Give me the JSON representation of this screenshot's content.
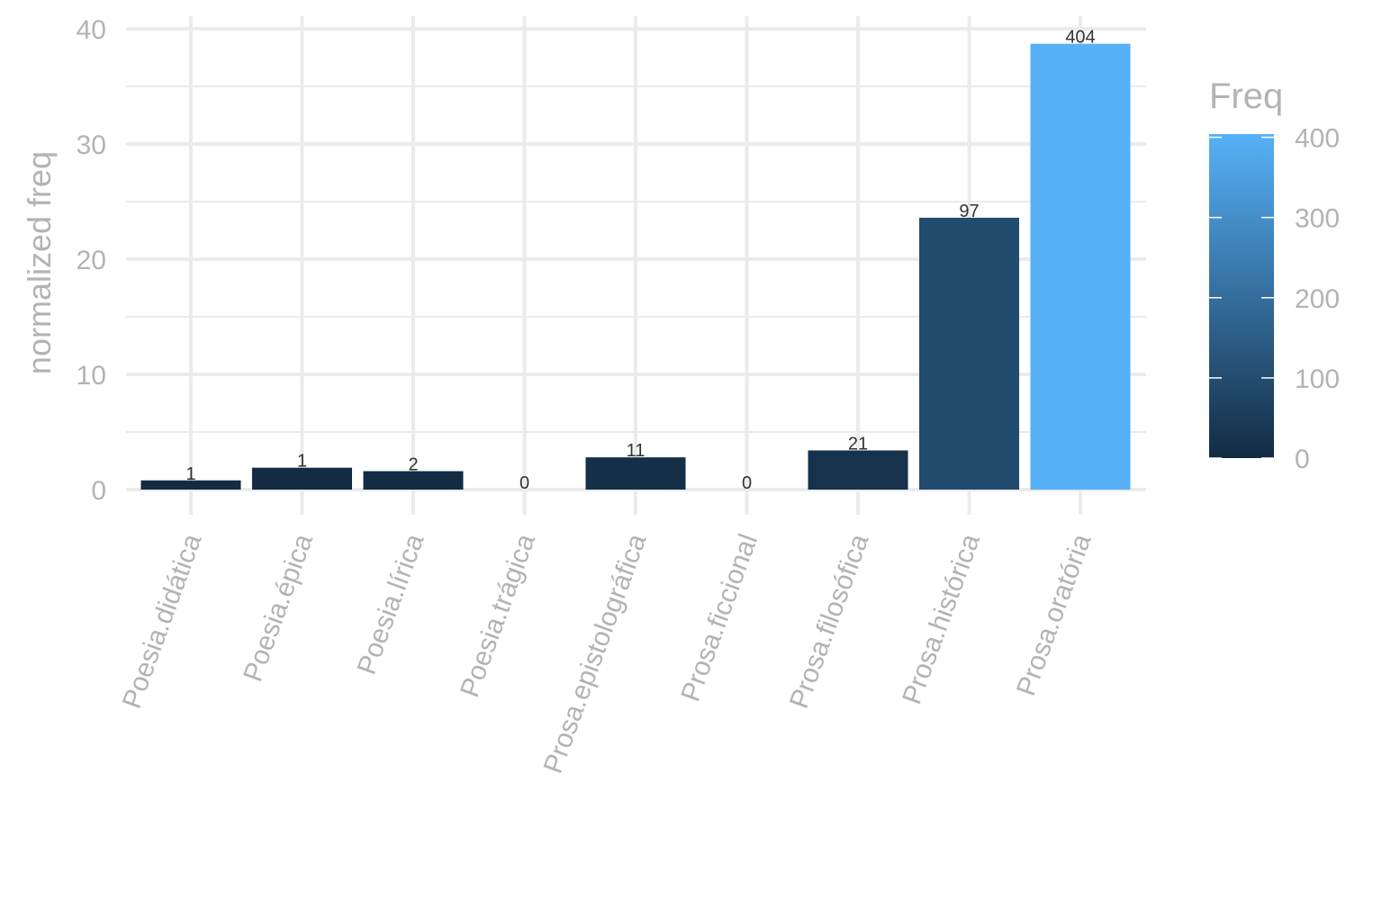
{
  "chart_data": {
    "type": "bar",
    "ylabel": "normalized freq",
    "xlabel": "",
    "ylim": [
      0,
      40
    ],
    "yticks": [
      0,
      10,
      20,
      30,
      40
    ],
    "grid": true,
    "legend": "right",
    "categories": [
      "Poesia.didática",
      "Poesia.épica",
      "Poesia.lírica",
      "Poesia.trágica",
      "Prosa.epistolográfica",
      "Prosa.ficcional",
      "Prosa.filosófica",
      "Prosa.histórica",
      "Prosa.oratória"
    ],
    "values": [
      0.8,
      1.9,
      1.6,
      0,
      2.8,
      0,
      3.4,
      23.6,
      38.7
    ],
    "freq": [
      1,
      1,
      2,
      0,
      11,
      0,
      21,
      97,
      404
    ],
    "colorbar": {
      "title": "Freq",
      "range": [
        0,
        404
      ],
      "ticks": [
        0,
        100,
        200,
        300,
        400
      ],
      "low_color": "#132b43",
      "high_color": "#56b1f7"
    }
  }
}
